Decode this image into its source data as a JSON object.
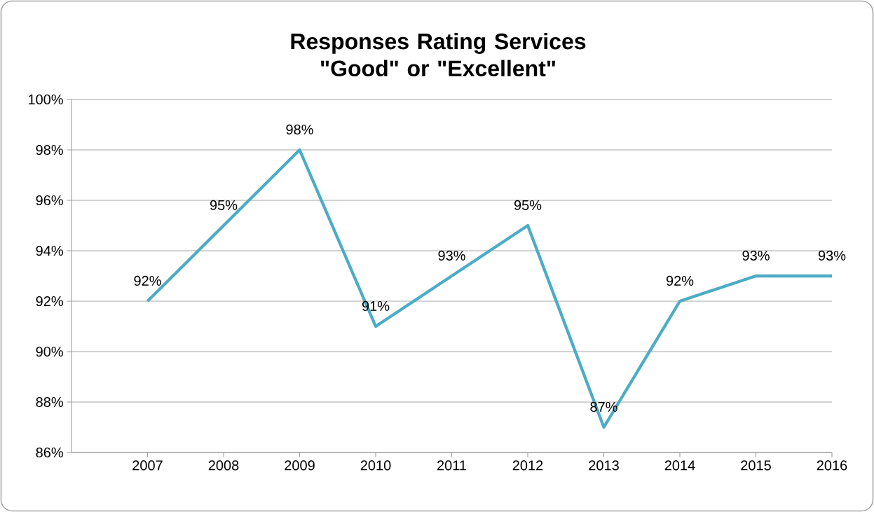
{
  "chart_data": {
    "type": "line",
    "title": "Responses Rating Services \"Good\" or \"Excellent\"",
    "categories": [
      "2007",
      "2008",
      "2009",
      "2010",
      "2011",
      "2012",
      "2013",
      "2014",
      "2015",
      "2016"
    ],
    "values": [
      92,
      95,
      98,
      91,
      93,
      95,
      87,
      92,
      93,
      93
    ],
    "value_labels": [
      "92%",
      "95%",
      "98%",
      "91%",
      "93%",
      "95%",
      "87%",
      "92%",
      "93%",
      "93%"
    ],
    "color": "#4bacc6",
    "ylim": [
      86,
      100
    ],
    "yticks": [
      {
        "value": 86,
        "label": "86%"
      },
      {
        "value": 88,
        "label": "88%"
      },
      {
        "value": 90,
        "label": "90%"
      },
      {
        "value": 92,
        "label": "92%"
      },
      {
        "value": 94,
        "label": "94%"
      },
      {
        "value": 96,
        "label": "96%"
      },
      {
        "value": 98,
        "label": "98%"
      },
      {
        "value": 100,
        "label": "100%"
      }
    ],
    "grid": "y"
  }
}
